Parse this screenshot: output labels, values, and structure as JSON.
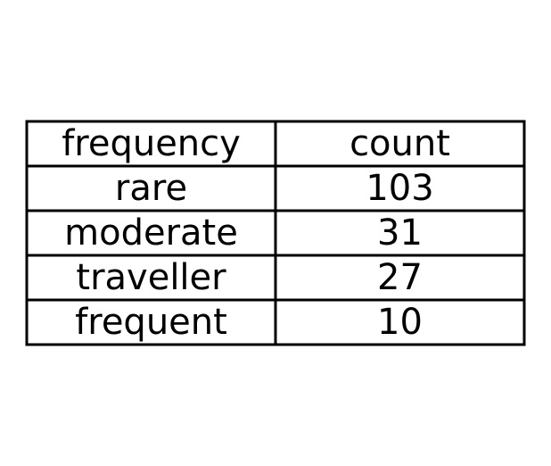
{
  "chart_data": {
    "type": "table",
    "columns": [
      "frequency",
      "count"
    ],
    "rows": [
      [
        "rare",
        "103"
      ],
      [
        "moderate",
        "31"
      ],
      [
        "traveller",
        "27"
      ],
      [
        "frequent",
        "10"
      ]
    ]
  },
  "colors": {
    "border": "#000000",
    "text": "#000000",
    "background": "#ffffff"
  }
}
